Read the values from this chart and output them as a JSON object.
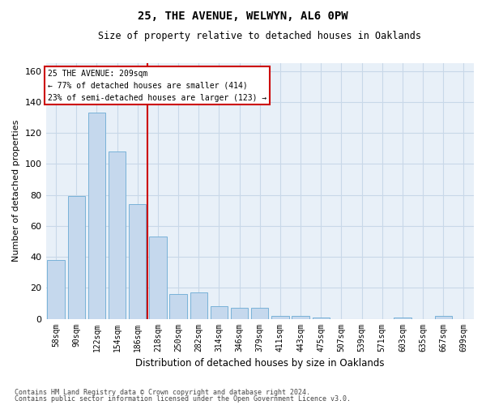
{
  "title1": "25, THE AVENUE, WELWYN, AL6 0PW",
  "title2": "Size of property relative to detached houses in Oaklands",
  "xlabel": "Distribution of detached houses by size in Oaklands",
  "ylabel": "Number of detached properties",
  "categories": [
    "58sqm",
    "90sqm",
    "122sqm",
    "154sqm",
    "186sqm",
    "218sqm",
    "250sqm",
    "282sqm",
    "314sqm",
    "346sqm",
    "379sqm",
    "411sqm",
    "443sqm",
    "475sqm",
    "507sqm",
    "539sqm",
    "571sqm",
    "603sqm",
    "635sqm",
    "667sqm",
    "699sqm"
  ],
  "values": [
    38,
    79,
    133,
    108,
    74,
    53,
    16,
    17,
    8,
    7,
    7,
    2,
    2,
    1,
    0,
    0,
    0,
    1,
    0,
    2,
    0
  ],
  "bar_color": "#c5d8ed",
  "bar_edge_color": "#6aaad4",
  "annotation_line_label": "25 THE AVENUE: 209sqm",
  "annotation_text1": "← 77% of detached houses are smaller (414)",
  "annotation_text2": "23% of semi-detached houses are larger (123) →",
  "annotation_box_color": "#ffffff",
  "annotation_box_edge_color": "#cc0000",
  "vline_color": "#cc0000",
  "grid_color": "#c8d8e8",
  "background_color": "#e8f0f8",
  "ylim": [
    0,
    165
  ],
  "yticks": [
    0,
    20,
    40,
    60,
    80,
    100,
    120,
    140,
    160
  ],
  "footer1": "Contains HM Land Registry data © Crown copyright and database right 2024.",
  "footer2": "Contains public sector information licensed under the Open Government Licence v3.0."
}
